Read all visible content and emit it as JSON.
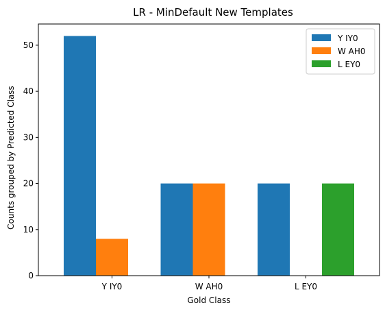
{
  "chart_data": {
    "type": "bar",
    "title": "LR - MinDefault New Templates",
    "xlabel": "Gold Class",
    "ylabel": "Counts grouped by Predicted Class",
    "categories": [
      "Y IY0",
      "W AH0",
      "L EY0"
    ],
    "series": [
      {
        "name": "Y IY0",
        "values": [
          52,
          20,
          20
        ],
        "color": "#1f77b4"
      },
      {
        "name": "W AH0",
        "values": [
          8,
          20,
          0
        ],
        "color": "#ff7f0e"
      },
      {
        "name": "L EY0",
        "values": [
          0,
          0,
          20
        ],
        "color": "#2ca02c"
      }
    ],
    "ylim": [
      0,
      54.6
    ],
    "yticks": [
      0,
      10,
      20,
      30,
      40,
      50
    ],
    "legend_position": "top-right",
    "grid": false
  }
}
